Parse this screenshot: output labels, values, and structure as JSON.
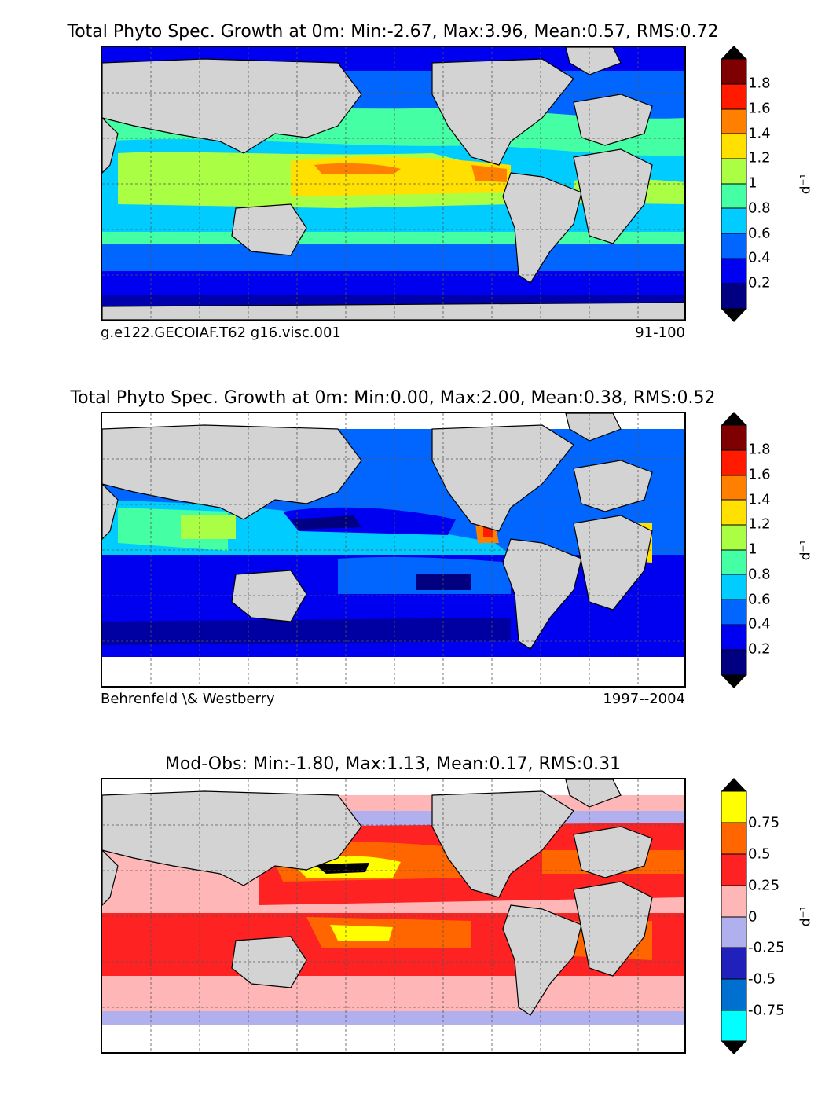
{
  "panels": [
    {
      "title": "Total Phyto Spec. Growth at 0m: Min:-2.67, Max:3.96, Mean:0.57, RMS:0.72",
      "subtitle_left": "g.e122.GECOIAF.T62 g16.visc.001",
      "subtitle_right": "91-100",
      "unit": "d⁻¹",
      "ticks": [
        "1.8",
        "1.6",
        "1.4",
        "1.2",
        "1",
        "0.8",
        "0.6",
        "0.4",
        "0.2"
      ],
      "colors": [
        "#7f0000",
        "#ff1a00",
        "#ff8000",
        "#ffe000",
        "#aaff44",
        "#44ffa4",
        "#00ccff",
        "#0066ff",
        "#0000f0",
        "#000080"
      ],
      "arrow_top": "#000000",
      "arrow_bottom": "#000000"
    },
    {
      "title": "Total Phyto Spec. Growth at 0m: Min:0.00, Max:2.00, Mean:0.38, RMS:0.52",
      "subtitle_left": "Behrenfeld \\& Westberry",
      "subtitle_right": "1997--2004",
      "unit": "d⁻¹",
      "ticks": [
        "1.8",
        "1.6",
        "1.4",
        "1.2",
        "1",
        "0.8",
        "0.6",
        "0.4",
        "0.2"
      ],
      "colors": [
        "#7f0000",
        "#ff1a00",
        "#ff8000",
        "#ffe000",
        "#aaff44",
        "#44ffa4",
        "#00ccff",
        "#0066ff",
        "#0000f0",
        "#000080"
      ],
      "arrow_top": "#000000",
      "arrow_bottom": "#000000"
    },
    {
      "title": "Mod-Obs: Min:-1.80, Max:1.13, Mean:0.17, RMS:0.31",
      "subtitle_left": "",
      "subtitle_right": "",
      "unit": "d⁻¹",
      "ticks": [
        "0.75",
        "0.5",
        "0.25",
        "0",
        "-0.25",
        "-0.5",
        "-0.75"
      ],
      "colors": [
        "#ffff00",
        "#ff6600",
        "#ff2222",
        "#ffb6b6",
        "#b0b0ee",
        "#2020bb",
        "#0070d0",
        "#00ffff"
      ],
      "arrow_top": "#000000",
      "arrow_bottom": "#000000"
    }
  ]
}
